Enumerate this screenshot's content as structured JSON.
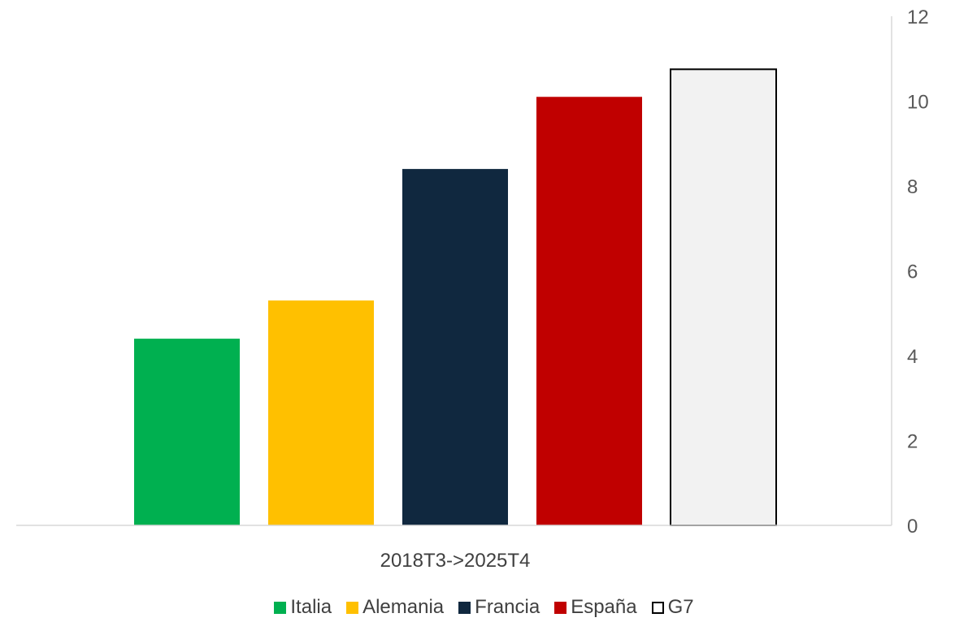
{
  "chart_data": {
    "type": "bar",
    "categories": [
      "2018T3->2025T4"
    ],
    "series": [
      {
        "name": "Italia",
        "values": [
          4.4
        ],
        "color": "#00B050"
      },
      {
        "name": "Alemania",
        "values": [
          5.3
        ],
        "color": "#FFC000"
      },
      {
        "name": "Francia",
        "values": [
          8.4
        ],
        "color": "#10283F"
      },
      {
        "name": "España",
        "values": [
          10.1
        ],
        "color": "#C00000"
      },
      {
        "name": "G7",
        "values": [
          10.75
        ],
        "color": "#F2F2F2",
        "outline": "#000000"
      }
    ],
    "y_axis": {
      "position": "right",
      "ylim": [
        0,
        12
      ],
      "ticks": [
        "0",
        "2",
        "4",
        "6",
        "8",
        "10",
        "12"
      ]
    },
    "grid": false,
    "legend_position": "bottom"
  }
}
